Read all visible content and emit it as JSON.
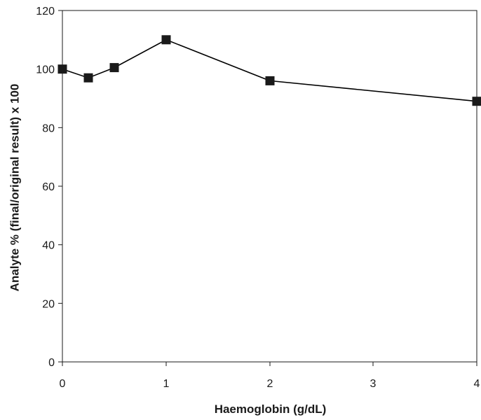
{
  "chart_data": {
    "type": "line",
    "title": "",
    "xlabel": "Haemoglobin (g/dL)",
    "ylabel": "Analyte % (final/original result) x 100",
    "x_categories": [
      "0",
      "0.25",
      "0.5",
      "1",
      "2",
      "4"
    ],
    "x_tick_labels": [
      "0",
      "1",
      "2",
      "3",
      "4"
    ],
    "ylim": [
      0,
      120
    ],
    "y_ticks": [
      0,
      20,
      40,
      60,
      80,
      100,
      120
    ],
    "grid": false,
    "legend": "none",
    "marker": "square",
    "line_color": "#000000",
    "marker_color": "#1a1a1a",
    "series": [
      {
        "x": [
          0,
          0.25,
          0.5,
          1,
          2,
          4
        ],
        "values": [
          100,
          97,
          100.5,
          110,
          96,
          89
        ]
      }
    ]
  }
}
